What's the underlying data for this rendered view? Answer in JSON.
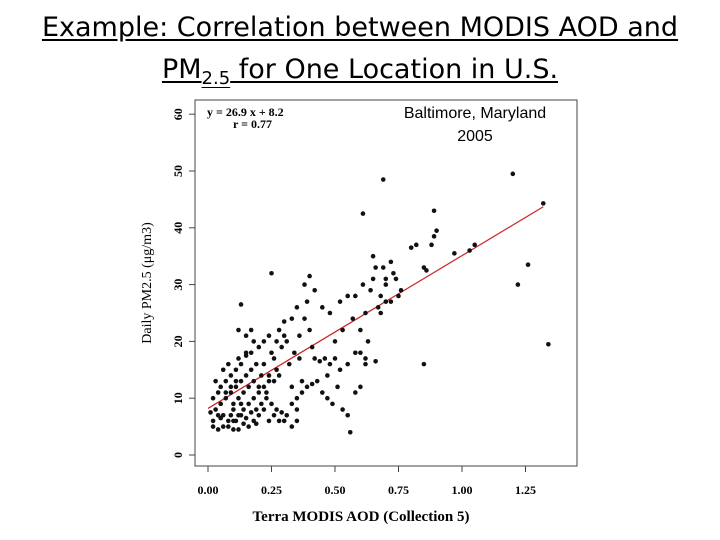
{
  "slide": {
    "title_line1": "Example: Correlation between MODIS AOD and",
    "title_line2_prefix": "PM",
    "title_line2_sub": "2.5",
    "title_line2_suffix": " for One Location in U.S."
  },
  "chart_data": {
    "type": "scatter",
    "title": "Baltimore, Maryland",
    "subtitle": "2005",
    "xlabel": "Terra MODIS AOD (Collection 5)",
    "ylabel": "Daily PM2.5 (μg/m3)",
    "xlim": [
      0,
      1.4
    ],
    "ylim": [
      0,
      60
    ],
    "xticks": [
      "0.00",
      "0.25",
      "0.50",
      "0.75",
      "1.00",
      "1.25"
    ],
    "xtick_values": [
      0,
      0.25,
      0.5,
      0.75,
      1.0,
      1.25
    ],
    "yticks": [
      "0",
      "10",
      "20",
      "30",
      "40",
      "50",
      "60"
    ],
    "ytick_values": [
      0,
      10,
      20,
      30,
      40,
      50,
      60
    ],
    "grid": false,
    "equation": "y = 26.9 x + 8.2",
    "r_value": "r = 0.77",
    "fit": {
      "slope": 26.9,
      "intercept": 8.2,
      "x_range": [
        0,
        1.32
      ],
      "color": "#cc2222"
    },
    "point_color": "#111111",
    "points": [
      [
        0.69,
        48.5
      ],
      [
        1.2,
        49.5
      ],
      [
        1.32,
        44.3
      ],
      [
        0.61,
        42.5
      ],
      [
        0.89,
        43
      ],
      [
        0.9,
        39.5
      ],
      [
        0.89,
        38.5
      ],
      [
        0.88,
        37
      ],
      [
        1.05,
        37
      ],
      [
        1.03,
        36
      ],
      [
        0.97,
        35.5
      ],
      [
        0.8,
        36.5
      ],
      [
        0.82,
        37
      ],
      [
        0.65,
        35
      ],
      [
        0.66,
        33
      ],
      [
        0.69,
        33
      ],
      [
        0.72,
        34
      ],
      [
        0.73,
        32
      ],
      [
        0.85,
        33
      ],
      [
        0.86,
        32.5
      ],
      [
        1.26,
        33.5
      ],
      [
        0.65,
        31
      ],
      [
        0.7,
        31
      ],
      [
        0.61,
        30
      ],
      [
        0.64,
        29
      ],
      [
        0.58,
        28
      ],
      [
        0.55,
        28
      ],
      [
        0.52,
        27
      ],
      [
        0.45,
        26
      ],
      [
        0.48,
        25
      ],
      [
        0.42,
        29
      ],
      [
        0.4,
        31.5
      ],
      [
        0.38,
        30
      ],
      [
        0.39,
        27
      ],
      [
        0.35,
        26
      ],
      [
        0.33,
        24
      ],
      [
        0.3,
        23.5
      ],
      [
        0.28,
        22
      ],
      [
        0.31,
        20
      ],
      [
        0.36,
        21
      ],
      [
        0.34,
        18
      ],
      [
        0.32,
        16
      ],
      [
        0.36,
        17
      ],
      [
        0.42,
        17
      ],
      [
        0.44,
        16.5
      ],
      [
        0.46,
        17
      ],
      [
        0.48,
        16
      ],
      [
        0.47,
        14
      ],
      [
        0.5,
        17
      ],
      [
        0.52,
        15
      ],
      [
        0.55,
        16
      ],
      [
        0.58,
        18
      ],
      [
        0.6,
        18
      ],
      [
        0.62,
        25
      ],
      [
        0.6,
        22
      ],
      [
        0.63,
        20
      ],
      [
        0.66,
        16.5
      ],
      [
        0.7,
        27
      ],
      [
        0.75,
        28
      ],
      [
        0.62,
        17
      ],
      [
        0.62,
        16
      ],
      [
        0.85,
        16
      ],
      [
        1.22,
        30
      ],
      [
        1.34,
        19.5
      ],
      [
        0.25,
        32
      ],
      [
        0.13,
        26.5
      ],
      [
        0.12,
        22
      ],
      [
        0.15,
        21
      ],
      [
        0.17,
        22
      ],
      [
        0.18,
        20
      ],
      [
        0.15,
        18
      ],
      [
        0.12,
        17
      ],
      [
        0.2,
        19
      ],
      [
        0.22,
        20
      ],
      [
        0.25,
        18
      ],
      [
        0.26,
        17
      ],
      [
        0.27,
        15
      ],
      [
        0.28,
        14
      ],
      [
        0.24,
        13
      ],
      [
        0.22,
        12
      ],
      [
        0.2,
        11
      ],
      [
        0.18,
        10
      ],
      [
        0.16,
        9
      ],
      [
        0.14,
        8
      ],
      [
        0.12,
        7
      ],
      [
        0.1,
        6
      ],
      [
        0.08,
        5
      ],
      [
        0.06,
        5
      ],
      [
        0.04,
        4.5
      ],
      [
        0.02,
        5
      ],
      [
        0.01,
        7.5
      ],
      [
        0.03,
        8
      ],
      [
        0.05,
        9
      ],
      [
        0.07,
        10
      ],
      [
        0.09,
        11
      ],
      [
        0.11,
        12
      ],
      [
        0.13,
        13
      ],
      [
        0.15,
        14
      ],
      [
        0.17,
        15
      ],
      [
        0.19,
        16
      ],
      [
        0.21,
        14
      ],
      [
        0.23,
        11
      ],
      [
        0.25,
        9
      ],
      [
        0.27,
        8
      ],
      [
        0.29,
        7.5
      ],
      [
        0.31,
        7
      ],
      [
        0.33,
        9
      ],
      [
        0.35,
        10
      ],
      [
        0.37,
        11
      ],
      [
        0.39,
        12
      ],
      [
        0.41,
        12.5
      ],
      [
        0.43,
        13
      ],
      [
        0.45,
        11
      ],
      [
        0.47,
        10
      ],
      [
        0.49,
        9
      ],
      [
        0.51,
        12
      ],
      [
        0.53,
        8
      ],
      [
        0.55,
        7
      ],
      [
        0.58,
        11
      ],
      [
        0.6,
        12
      ],
      [
        0.35,
        6
      ],
      [
        0.33,
        5
      ],
      [
        0.3,
        6
      ],
      [
        0.28,
        6
      ],
      [
        0.26,
        7
      ],
      [
        0.24,
        6
      ],
      [
        0.22,
        8
      ],
      [
        0.2,
        7
      ],
      [
        0.18,
        6
      ],
      [
        0.16,
        5
      ],
      [
        0.14,
        5.5
      ],
      [
        0.12,
        4.5
      ],
      [
        0.1,
        4.5
      ],
      [
        0.08,
        6
      ],
      [
        0.06,
        7
      ],
      [
        0.04,
        7
      ],
      [
        0.02,
        6
      ],
      [
        0.05,
        12
      ],
      [
        0.07,
        13
      ],
      [
        0.09,
        14
      ],
      [
        0.11,
        15
      ],
      [
        0.08,
        16
      ],
      [
        0.06,
        15
      ],
      [
        0.04,
        11
      ],
      [
        0.03,
        13
      ],
      [
        0.02,
        10
      ],
      [
        0.05,
        6.5
      ],
      [
        0.1,
        9
      ],
      [
        0.12,
        10
      ],
      [
        0.14,
        11
      ],
      [
        0.16,
        12
      ],
      [
        0.18,
        13
      ],
      [
        0.2,
        12
      ],
      [
        0.22,
        16
      ],
      [
        0.24,
        14
      ],
      [
        0.26,
        13
      ],
      [
        0.19,
        8
      ],
      [
        0.21,
        9
      ],
      [
        0.23,
        10
      ],
      [
        0.17,
        18
      ],
      [
        0.15,
        17.5
      ],
      [
        0.13,
        16
      ],
      [
        0.11,
        13
      ],
      [
        0.09,
        12
      ],
      [
        0.07,
        11
      ],
      [
        0.1,
        8
      ],
      [
        0.13,
        9
      ],
      [
        0.09,
        7
      ],
      [
        0.11,
        6
      ],
      [
        0.13,
        7
      ],
      [
        0.15,
        6.5
      ],
      [
        0.17,
        7.5
      ],
      [
        0.19,
        5.5
      ],
      [
        0.56,
        4
      ],
      [
        0.35,
        8
      ],
      [
        0.4,
        22
      ],
      [
        0.38,
        24
      ],
      [
        0.3,
        21
      ],
      [
        0.29,
        19
      ],
      [
        0.27,
        20
      ],
      [
        0.24,
        21
      ],
      [
        0.33,
        12
      ],
      [
        0.37,
        13
      ],
      [
        0.41,
        19
      ],
      [
        0.5,
        20
      ],
      [
        0.53,
        22
      ],
      [
        0.57,
        24
      ],
      [
        0.67,
        26
      ],
      [
        0.68,
        25
      ],
      [
        0.74,
        31
      ],
      [
        0.76,
        29
      ],
      [
        0.7,
        30
      ],
      [
        0.68,
        28
      ],
      [
        0.72,
        27
      ]
    ]
  }
}
